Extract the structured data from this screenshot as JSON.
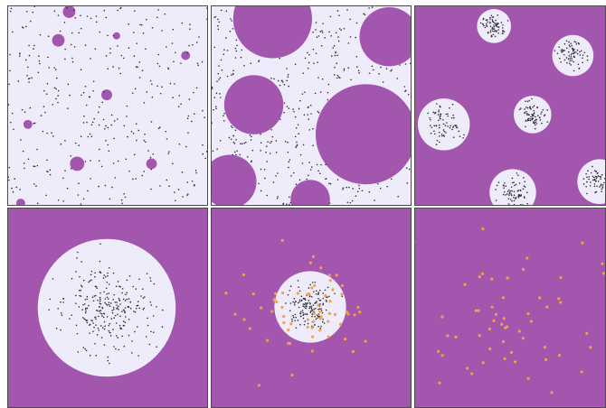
{
  "colors": {
    "light_background": "#eeecfb",
    "purple": "#a356ad",
    "dot": "#2b2b2b",
    "orange_dot": "#f5a142",
    "border": "#4a4a4a"
  },
  "panels": [
    {
      "id": "p1",
      "background": "light",
      "description_type": "sparse-purple-circles-with-scattered-dots"
    },
    {
      "id": "p2",
      "background": "light",
      "description_type": "large-purple-circles-with-scattered-dots"
    },
    {
      "id": "p3",
      "background": "purple",
      "description_type": "white-circles-with-clustered-dots"
    },
    {
      "id": "p4",
      "background": "purple",
      "description_type": "single-large-white-circle-with-cluster"
    },
    {
      "id": "p5",
      "background": "purple",
      "description_type": "white-circle-with-orange-dots"
    },
    {
      "id": "p6",
      "background": "purple",
      "description_type": "scattered-orange-dots"
    }
  ]
}
